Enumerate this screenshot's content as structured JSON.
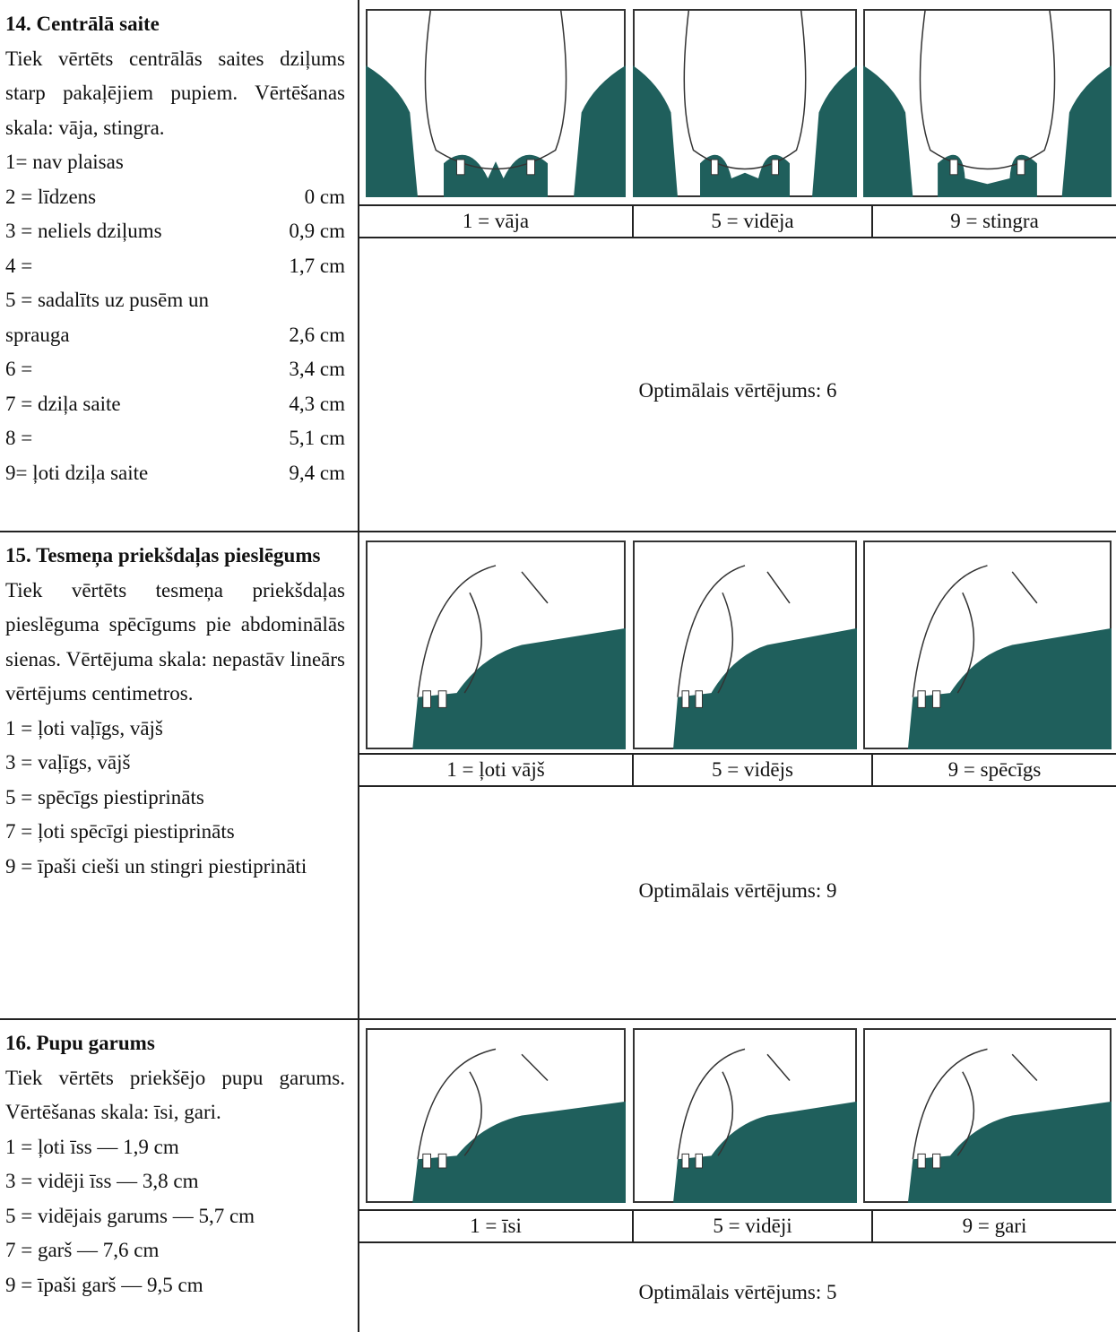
{
  "sections": [
    {
      "title": "14. Centrālā saite",
      "description": "Tiek vērtēts centrālās saites dziļums starp pakaļējiem pupiem. Vērtēšanas skala: vāja, stingra.",
      "scale": [
        {
          "text": "1=  nav plaisas"
        },
        {
          "text": "2 = līdzens",
          "cm": "0 cm"
        },
        {
          "text": "3 = neliels dziļums",
          "cm": "0,9 cm"
        },
        {
          "text": "4 =",
          "cm": "1,7 cm"
        },
        {
          "text": "5 = sadalīts uz pusēm un"
        },
        {
          "text": "sprauga",
          "cm": "2,6 cm"
        },
        {
          "text": "6 =",
          "cm": "3,4 cm"
        },
        {
          "text": "7 = dziļa saite",
          "cm": "4,3 cm"
        },
        {
          "text": "8 =",
          "cm": "5,1 cm"
        },
        {
          "text": "9= ļoti dziļa saite",
          "cm": "9,4 cm"
        }
      ],
      "captions": [
        "1 = vāja",
        "5 = vidēja",
        "9 = stingra"
      ],
      "optimal": "Optimālais vērtējums: 6"
    },
    {
      "title": "15. Tesmeņa priekšdaļas pieslēgums",
      "description": "Tiek vērtēts tesmeņa priekšdaļas pieslēguma spēcīgums pie abdominālās sienas. Vērtējuma skala: nepastāv lineārs vērtējums centimetros.",
      "scale": [
        {
          "text": "1 = ļoti vaļīgs, vājš"
        },
        {
          "text": "3 = vaļīgs, vājš"
        },
        {
          "text": "5 = spēcīgs piestiprināts"
        },
        {
          "text": "7 = ļoti spēcīgi piestiprināts"
        },
        {
          "text": "9 = īpaši cieši un stingri piestiprināti"
        }
      ],
      "captions": [
        "1 = ļoti vājš",
        "5 = vidējs",
        "9 = spēcīgs"
      ],
      "optimal": "Optimālais vērtējums: 9"
    },
    {
      "title": "16. Pupu garums",
      "description": "Tiek vērtēts priekšējo pupu garums. Vērtēšanas skala: īsi, gari.",
      "scale": [
        {
          "text": "1 = ļoti īss — 1,9 cm"
        },
        {
          "text": "3 = vidēji īss — 3,8 cm"
        },
        {
          "text": "5 = vidējais garums — 5,7 cm"
        },
        {
          "text": "7 = garš — 7,6 cm"
        },
        {
          "text": "9 = īpaši garš — 9,5 cm"
        }
      ],
      "captions": [
        "1 = īsi",
        "5 = vidēji",
        "9 = gari"
      ],
      "optimal": "Optimālais vērtējums: 5"
    }
  ]
}
